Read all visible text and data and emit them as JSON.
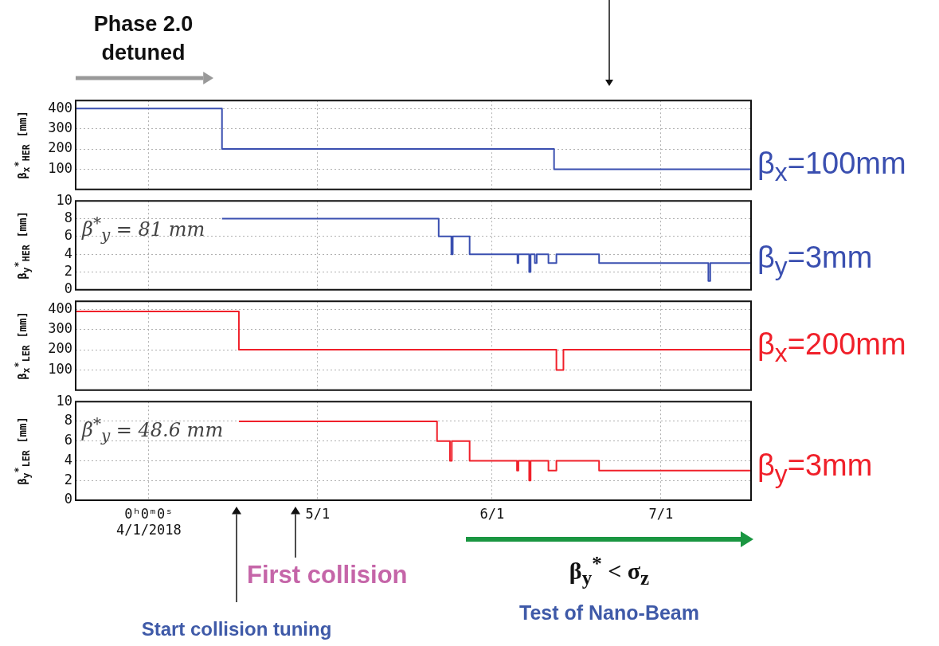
{
  "chart_data": [
    {
      "type": "step",
      "ylabel": "β$_{x}$$^{*}$$_{HER}$ [mm]",
      "color": "#3a4fb0",
      "x": [
        "2018-03-19",
        "2018-04-14",
        "2018-06-12",
        "2018-07-17"
      ],
      "values": [
        400,
        200,
        100,
        100
      ],
      "xlim": [
        "2018-03-19",
        "2018-07-17"
      ],
      "xticks": [
        "2018-04-01",
        "2018-05-01",
        "2018-06-01",
        "2018-07-01"
      ],
      "ylim": [
        0,
        440
      ],
      "yticks": [
        {
          "value": 0,
          "label": null
        },
        100,
        200,
        300,
        400
      ],
      "grid": true,
      "tick_labels": "y",
      "annotations": [
        "Phase 2.0 detuned",
        {
          "text": "β$_{x}$=100mm",
          "x": "2018-07-17",
          "y": 100
        }
      ]
    },
    {
      "type": "step",
      "ylabel": "β$_{y}$$^{*}$$_{HER}$ [mm]",
      "color": "#3a4fb0",
      "x": [
        "2018-04-14",
        "2018-05-22T12:00",
        "2018-05-24T18:00",
        "2018-05-25T00:00",
        "2018-05-28",
        "2018-06-05T12:00",
        "2018-06-05T16:00",
        "2018-06-07T14:00",
        "2018-06-07T20:00",
        "2018-06-08T14:00",
        "2018-06-08T22:00",
        "2018-06-11",
        "2018-06-12T10:00",
        "2018-06-20",
        "2018-07-09T10:00",
        "2018-07-09T18:00",
        "2018-07-17"
      ],
      "values": [
        8,
        6,
        4,
        6,
        4,
        3,
        4,
        2,
        4,
        3,
        4,
        3,
        4,
        3,
        1,
        3,
        3
      ],
      "xlim": [
        "2018-03-19",
        "2018-07-17"
      ],
      "xticks": [
        "2018-04-01",
        "2018-05-01",
        "2018-06-01",
        "2018-07-01"
      ],
      "ylim": [
        0,
        10
      ],
      "yticks": [
        0,
        2,
        4,
        6,
        8,
        10
      ],
      "grid": true,
      "tick_labels": "y",
      "annotations": [
        "β$^{*}$$_{y}$ = 81 mm",
        {
          "text": "β$_{y}$=3mm",
          "x": "2018-07-17",
          "y": 3
        }
      ]
    },
    {
      "type": "step",
      "ylabel": "β$_{x}$$^{*}$$_{LER}$ [mm]",
      "color": "#f0202a",
      "x": [
        "2018-03-19",
        "2018-04-17",
        "2018-06-12T10:00",
        "2018-06-13T16:00",
        "2018-07-17"
      ],
      "values": [
        390,
        200,
        100,
        200,
        200
      ],
      "xlim": [
        "2018-03-19",
        "2018-07-17"
      ],
      "xticks": [
        "2018-04-01",
        "2018-05-01",
        "2018-06-01",
        "2018-07-01"
      ],
      "ylim": [
        0,
        440
      ],
      "yticks": [
        {
          "value": 0,
          "label": null
        },
        100,
        200,
        300,
        400
      ],
      "grid": true,
      "tick_labels": "y",
      "annotations": [
        {
          "text": "β$_{x}$=200mm",
          "x": "2018-07-17",
          "y": 200
        }
      ]
    },
    {
      "type": "step",
      "ylabel": "β$_{y}$$^{*}$$_{LER}$ [mm]",
      "color": "#f0202a",
      "x": [
        "2018-04-17",
        "2018-05-22T05:00",
        "2018-05-24T12:00",
        "2018-05-24T20:00",
        "2018-05-28",
        "2018-06-05T10:00",
        "2018-06-05T16:00",
        "2018-06-07T14:00",
        "2018-06-07T20:00",
        "2018-06-11",
        "2018-06-12T10:00",
        "2018-06-20",
        "2018-07-17"
      ],
      "values": [
        8,
        6,
        4,
        6,
        4,
        3,
        4,
        2,
        4,
        3,
        4,
        3,
        3
      ],
      "xlim": [
        "2018-03-19",
        "2018-07-17"
      ],
      "xticks": [
        {
          "value": "2018-04-01",
          "label": "0ʰ0ᵐ0ˢ\n4/1/2018"
        },
        {
          "value": "2018-05-01",
          "label": "5/1"
        },
        {
          "value": "2018-06-01",
          "label": "6/1"
        },
        {
          "value": "2018-07-01",
          "label": "7/1"
        }
      ],
      "ylim": [
        0,
        10
      ],
      "yticks": [
        0,
        2,
        4,
        6,
        8,
        10
      ],
      "grid": true,
      "annotations": [
        "β$^{*}$$_{y}$ = 48.6 mm",
        {
          "text": "β$_{y}$=3mm",
          "x": "2018-07-17",
          "y": 3
        },
        "Start collision tuning",
        "First collision",
        "β$_{y}$$^{*}$ < σ$_{z}$",
        "Test of Nano-Beam"
      ]
    }
  ]
}
